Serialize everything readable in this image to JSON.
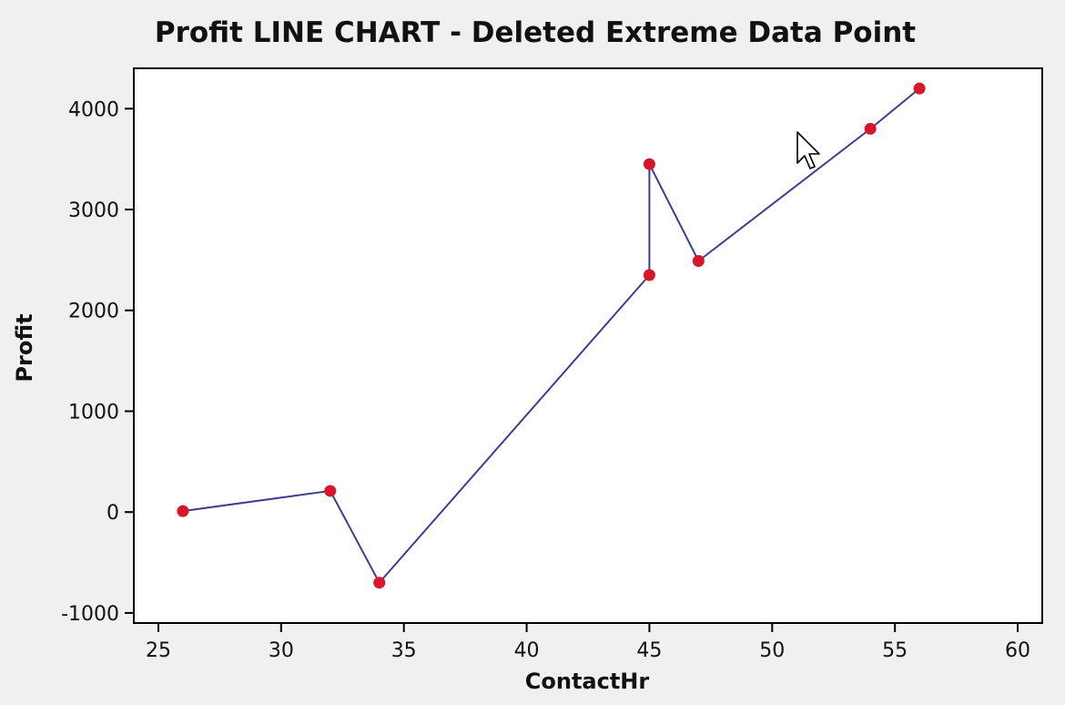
{
  "chart_data": {
    "type": "line",
    "title": "Profit LINE CHART - Deleted Extreme Data Point",
    "xlabel": "ContactHr",
    "ylabel": "Profit",
    "xlim": [
      24,
      61
    ],
    "ylim": [
      -1100,
      4400
    ],
    "x_ticks": [
      25,
      30,
      35,
      40,
      45,
      50,
      55,
      60
    ],
    "y_ticks": [
      -1000,
      0,
      1000,
      2000,
      3000,
      4000
    ],
    "grid": false,
    "series": [
      {
        "x": [
          26,
          32,
          34,
          45,
          45,
          47,
          54,
          56
        ],
        "y": [
          10,
          210,
          -700,
          2350,
          3450,
          2490,
          3800,
          4200
        ]
      }
    ],
    "colors": {
      "line": "#3a3f8f",
      "marker": "#d9152a",
      "plot_bg": "#ffffff",
      "page_bg": "#f0f0f0"
    }
  }
}
